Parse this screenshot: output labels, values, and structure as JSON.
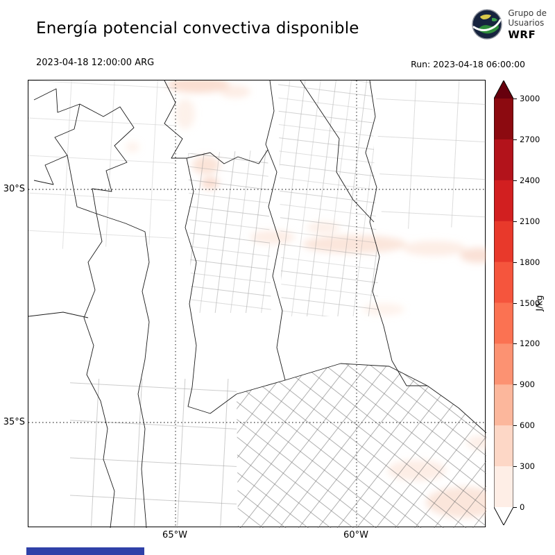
{
  "header": {
    "title": "Energía potencial convectiva disponible",
    "valid_time": "2023-04-18 12:00:00 ARG",
    "run_label": "Run: 2023-04-18 06:00:00",
    "logo": {
      "line1": "Grupo de",
      "line2": "Usuarios",
      "line3": "WRF"
    }
  },
  "map": {
    "y_ticks": {
      "lat30": "30°S",
      "lat35": "35°S"
    },
    "x_ticks": {
      "lon65": "65°W",
      "lon60": "60°W"
    }
  },
  "colorbar": {
    "unit": "J/kg",
    "tick_labels_top_to_bottom": [
      "3000",
      "2700",
      "2400",
      "2100",
      "1800",
      "1500",
      "1200",
      "900",
      "600",
      "300",
      "0"
    ],
    "segment_colors_top_to_bottom": [
      "#8c0a10",
      "#b3131b",
      "#d21f20",
      "#e8392b",
      "#f5553d",
      "#fb7252",
      "#fc9272",
      "#fcb79c",
      "#fdd7c6",
      "#feeee6"
    ],
    "arrow_top_color": "#67000d",
    "arrow_bottom_color": "#ffffff"
  },
  "footer": {
    "bar_color": "#2f41a8"
  },
  "chart_data": {
    "type": "heatmap",
    "title": "Energía potencial convectiva disponible",
    "variable": "CAPE (convective available potential energy)",
    "units": "J/kg",
    "valid_time": "2023-04-18 12:00:00 ARG",
    "run": "2023-04-18 06:00:00",
    "x_tick_labels": [
      "65°W",
      "60°W"
    ],
    "y_tick_labels": [
      "30°S",
      "35°S"
    ],
    "contour_levels": [
      0,
      300,
      600,
      900,
      1200,
      1500,
      1800,
      2100,
      2400,
      2700,
      3000
    ],
    "colormap_low_to_high": [
      "#feeee6",
      "#fdd7c6",
      "#fcb79c",
      "#fc9272",
      "#fb7252",
      "#f5553d",
      "#e8392b",
      "#d21f20",
      "#b3131b",
      "#8c0a10"
    ],
    "extend": "both",
    "legend_position": "right",
    "observed_values": "Field is predominantly ~0 J/kg over the mapped central-Argentina domain; faint 0-300 J/kg patches at the northern edge, in a band near 31°S across the center and east, and over the southeastern coastal corner near the Río de la Plata."
  }
}
